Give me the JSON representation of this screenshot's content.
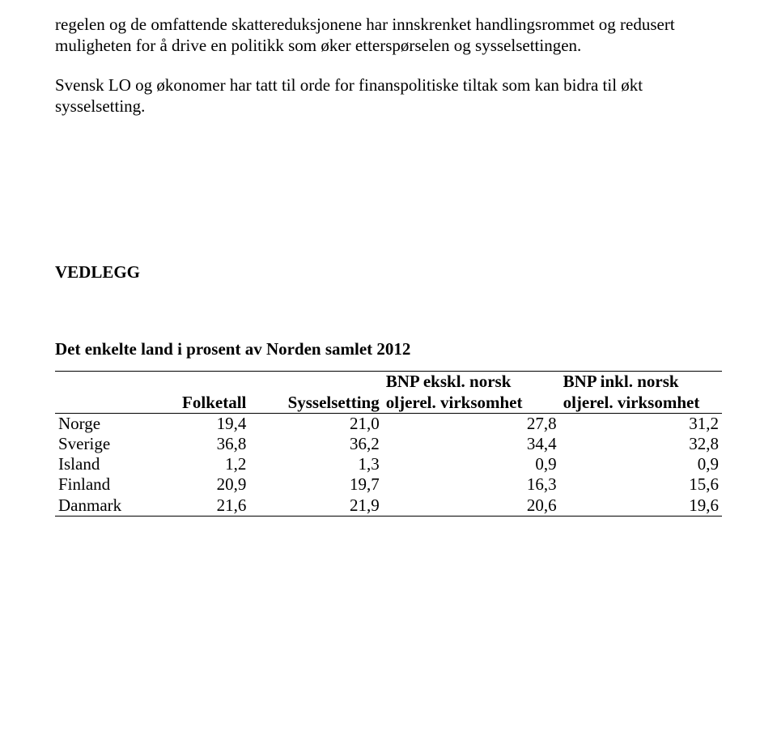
{
  "paragraphs": {
    "p1": "regelen og de omfattende skattereduksjonene har innskrenket handlingsrommet og redusert muligheten for å drive en politikk som øker etterspørselen og sysselsettingen.",
    "p2": "Svensk LO og økonomer har tatt til orde for finanspolitiske tiltak som kan bidra til økt sysselsetting."
  },
  "heading": "VEDLEGG",
  "table": {
    "title": "Det enkelte land i prosent av Norden samlet 2012",
    "columns": {
      "c0": "",
      "c1": "Folketall",
      "c2": "Sysselsetting",
      "c3a": "BNP ekskl. norsk",
      "c3b": "oljerel. virksomhet",
      "c4a": "BNP inkl. norsk",
      "c4b": "oljerel. virksomhet"
    },
    "rows": [
      {
        "name": "Norge",
        "v1": "19,4",
        "v2": "21,0",
        "v3": "27,8",
        "v4": "31,2"
      },
      {
        "name": "Sverige",
        "v1": "36,8",
        "v2": "36,2",
        "v3": "34,4",
        "v4": "32,8"
      },
      {
        "name": "Island",
        "v1": "1,2",
        "v2": "1,3",
        "v3": "0,9",
        "v4": "0,9"
      },
      {
        "name": "Finland",
        "v1": "20,9",
        "v2": "19,7",
        "v3": "16,3",
        "v4": "15,6"
      },
      {
        "name": "Danmark",
        "v1": "21,6",
        "v2": "21,9",
        "v3": "20,6",
        "v4": "19,6"
      }
    ],
    "styling": {
      "font_family": "Times New Roman",
      "font_size_pt": 16,
      "border_color": "#000000",
      "background_color": "#ffffff",
      "col_align": [
        "left",
        "right",
        "right",
        "right",
        "right"
      ]
    }
  }
}
